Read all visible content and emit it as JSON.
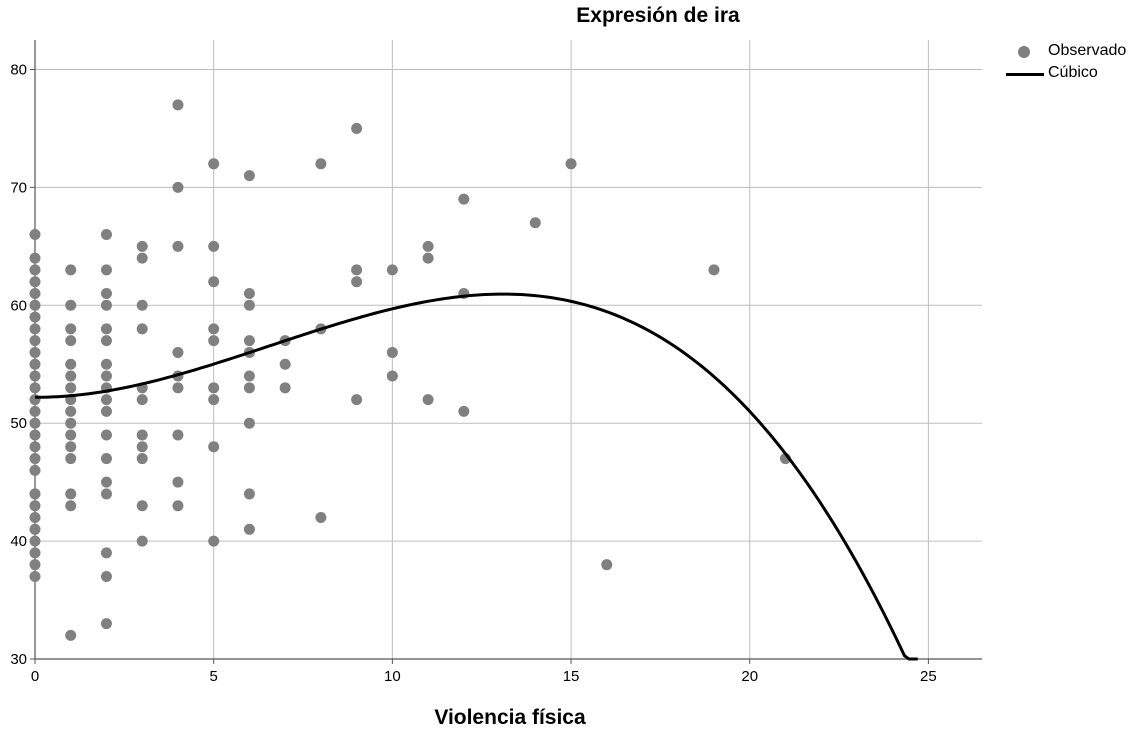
{
  "chart_data": {
    "type": "scatter",
    "title": "Expresión de ira",
    "xlabel": "Violencia física",
    "ylabel": "",
    "xlim": [
      0,
      26.5
    ],
    "ylim": [
      30,
      82.5
    ],
    "xticks": [
      0,
      5,
      10,
      15,
      20,
      25
    ],
    "yticks": [
      30,
      40,
      50,
      60,
      70,
      80
    ],
    "grid": true,
    "legend_position": "top-right",
    "colors": {
      "points": "#808080",
      "curve": "#000000",
      "grid": "#bdbdbd",
      "axis": "#555555"
    },
    "series": [
      {
        "name": "Observado",
        "kind": "scatter",
        "points": [
          [
            0,
            66
          ],
          [
            0,
            64
          ],
          [
            0,
            63
          ],
          [
            0,
            62
          ],
          [
            0,
            61
          ],
          [
            0,
            60
          ],
          [
            0,
            59
          ],
          [
            0,
            58
          ],
          [
            0,
            57
          ],
          [
            0,
            56
          ],
          [
            0,
            55
          ],
          [
            0,
            54
          ],
          [
            0,
            53
          ],
          [
            0,
            52
          ],
          [
            0,
            51
          ],
          [
            0,
            50
          ],
          [
            0,
            49
          ],
          [
            0,
            48
          ],
          [
            0,
            47
          ],
          [
            0,
            46
          ],
          [
            0,
            44
          ],
          [
            0,
            43
          ],
          [
            0,
            42
          ],
          [
            0,
            41
          ],
          [
            0,
            40
          ],
          [
            0,
            39
          ],
          [
            0,
            38
          ],
          [
            0,
            37
          ],
          [
            1,
            63
          ],
          [
            1,
            60
          ],
          [
            1,
            58
          ],
          [
            1,
            57
          ],
          [
            1,
            55
          ],
          [
            1,
            54
          ],
          [
            1,
            53
          ],
          [
            1,
            52
          ],
          [
            1,
            51
          ],
          [
            1,
            50
          ],
          [
            1,
            49
          ],
          [
            1,
            48
          ],
          [
            1,
            47
          ],
          [
            1,
            44
          ],
          [
            1,
            43
          ],
          [
            1,
            32
          ],
          [
            2,
            66
          ],
          [
            2,
            63
          ],
          [
            2,
            61
          ],
          [
            2,
            60
          ],
          [
            2,
            58
          ],
          [
            2,
            57
          ],
          [
            2,
            55
          ],
          [
            2,
            54
          ],
          [
            2,
            53
          ],
          [
            2,
            52
          ],
          [
            2,
            51
          ],
          [
            2,
            49
          ],
          [
            2,
            47
          ],
          [
            2,
            45
          ],
          [
            2,
            44
          ],
          [
            2,
            39
          ],
          [
            2,
            37
          ],
          [
            2,
            33
          ],
          [
            3,
            65
          ],
          [
            3,
            64
          ],
          [
            3,
            60
          ],
          [
            3,
            58
          ],
          [
            3,
            53
          ],
          [
            3,
            52
          ],
          [
            3,
            49
          ],
          [
            3,
            48
          ],
          [
            3,
            47
          ],
          [
            3,
            43
          ],
          [
            3,
            40
          ],
          [
            4,
            77
          ],
          [
            4,
            70
          ],
          [
            4,
            65
          ],
          [
            4,
            56
          ],
          [
            4,
            54
          ],
          [
            4,
            53
          ],
          [
            4,
            49
          ],
          [
            4,
            45
          ],
          [
            4,
            43
          ],
          [
            5,
            72
          ],
          [
            5,
            65
          ],
          [
            5,
            62
          ],
          [
            5,
            58
          ],
          [
            5,
            57
          ],
          [
            5,
            53
          ],
          [
            5,
            52
          ],
          [
            5,
            48
          ],
          [
            5,
            40
          ],
          [
            6,
            71
          ],
          [
            6,
            61
          ],
          [
            6,
            60
          ],
          [
            6,
            57
          ],
          [
            6,
            56
          ],
          [
            6,
            54
          ],
          [
            6,
            53
          ],
          [
            6,
            50
          ],
          [
            6,
            44
          ],
          [
            6,
            41
          ],
          [
            7,
            57
          ],
          [
            7,
            55
          ],
          [
            7,
            53
          ],
          [
            8,
            72
          ],
          [
            8,
            58
          ],
          [
            8,
            42
          ],
          [
            9,
            75
          ],
          [
            9,
            63
          ],
          [
            9,
            62
          ],
          [
            9,
            52
          ],
          [
            10,
            63
          ],
          [
            10,
            56
          ],
          [
            10,
            54
          ],
          [
            11,
            65
          ],
          [
            11,
            64
          ],
          [
            11,
            52
          ],
          [
            12,
            69
          ],
          [
            12,
            61
          ],
          [
            12,
            51
          ],
          [
            14,
            67
          ],
          [
            15,
            72
          ],
          [
            16,
            38
          ],
          [
            19,
            63
          ],
          [
            21,
            47
          ]
        ]
      },
      {
        "name": "Cúbico",
        "kind": "line",
        "coefficients": {
          "b0": 52.2,
          "b1": -0.02,
          "b2": 0.156,
          "b3": -0.0079
        },
        "x_range": [
          0,
          24.7
        ]
      }
    ]
  }
}
